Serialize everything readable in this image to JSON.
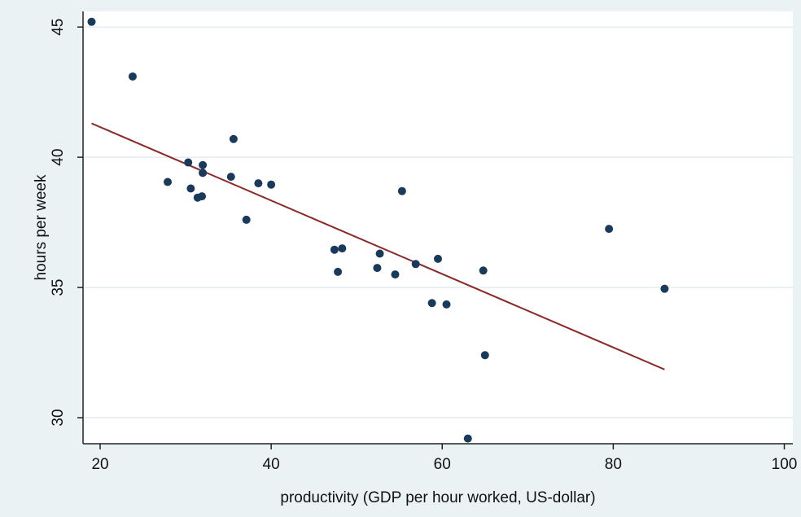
{
  "chart_data": {
    "type": "scatter",
    "title": "",
    "xlabel": "productivity (GDP per hour worked, US-dollar)",
    "ylabel": "hours per week",
    "xlim": [
      18,
      101
    ],
    "ylim": [
      29,
      45.6
    ],
    "xticks": [
      20,
      40,
      60,
      80,
      100
    ],
    "yticks": [
      30,
      35,
      40,
      45
    ],
    "grid": "horizontal",
    "legend": "none",
    "colors": {
      "points": "#1a3a5c",
      "fit_line": "#8b2a2a",
      "plot_background": "#ffffff",
      "outer_background": "#eaf2f3",
      "grid": "#e2ecee"
    },
    "series": [
      {
        "x": [
          19.0,
          23.8,
          27.9,
          30.3,
          30.6,
          31.4,
          31.9,
          32.0,
          32.0,
          35.3,
          35.6,
          37.1,
          38.5,
          40.0,
          47.4,
          47.8,
          48.3,
          52.4,
          52.7,
          54.5,
          55.3,
          56.9,
          58.8,
          59.5,
          60.5,
          63.0,
          64.8,
          65.0,
          79.5,
          86.0
        ],
        "y": [
          45.2,
          43.1,
          39.05,
          39.8,
          38.8,
          38.45,
          38.5,
          39.7,
          39.4,
          39.25,
          40.7,
          37.6,
          39.0,
          38.95,
          36.45,
          35.6,
          36.5,
          35.75,
          36.3,
          35.5,
          38.7,
          35.9,
          34.4,
          36.1,
          34.35,
          29.2,
          35.65,
          32.4,
          37.25,
          34.95
        ]
      }
    ],
    "fit_line": {
      "x": [
        19.0,
        86.0
      ],
      "y": [
        41.3,
        31.85
      ]
    }
  }
}
